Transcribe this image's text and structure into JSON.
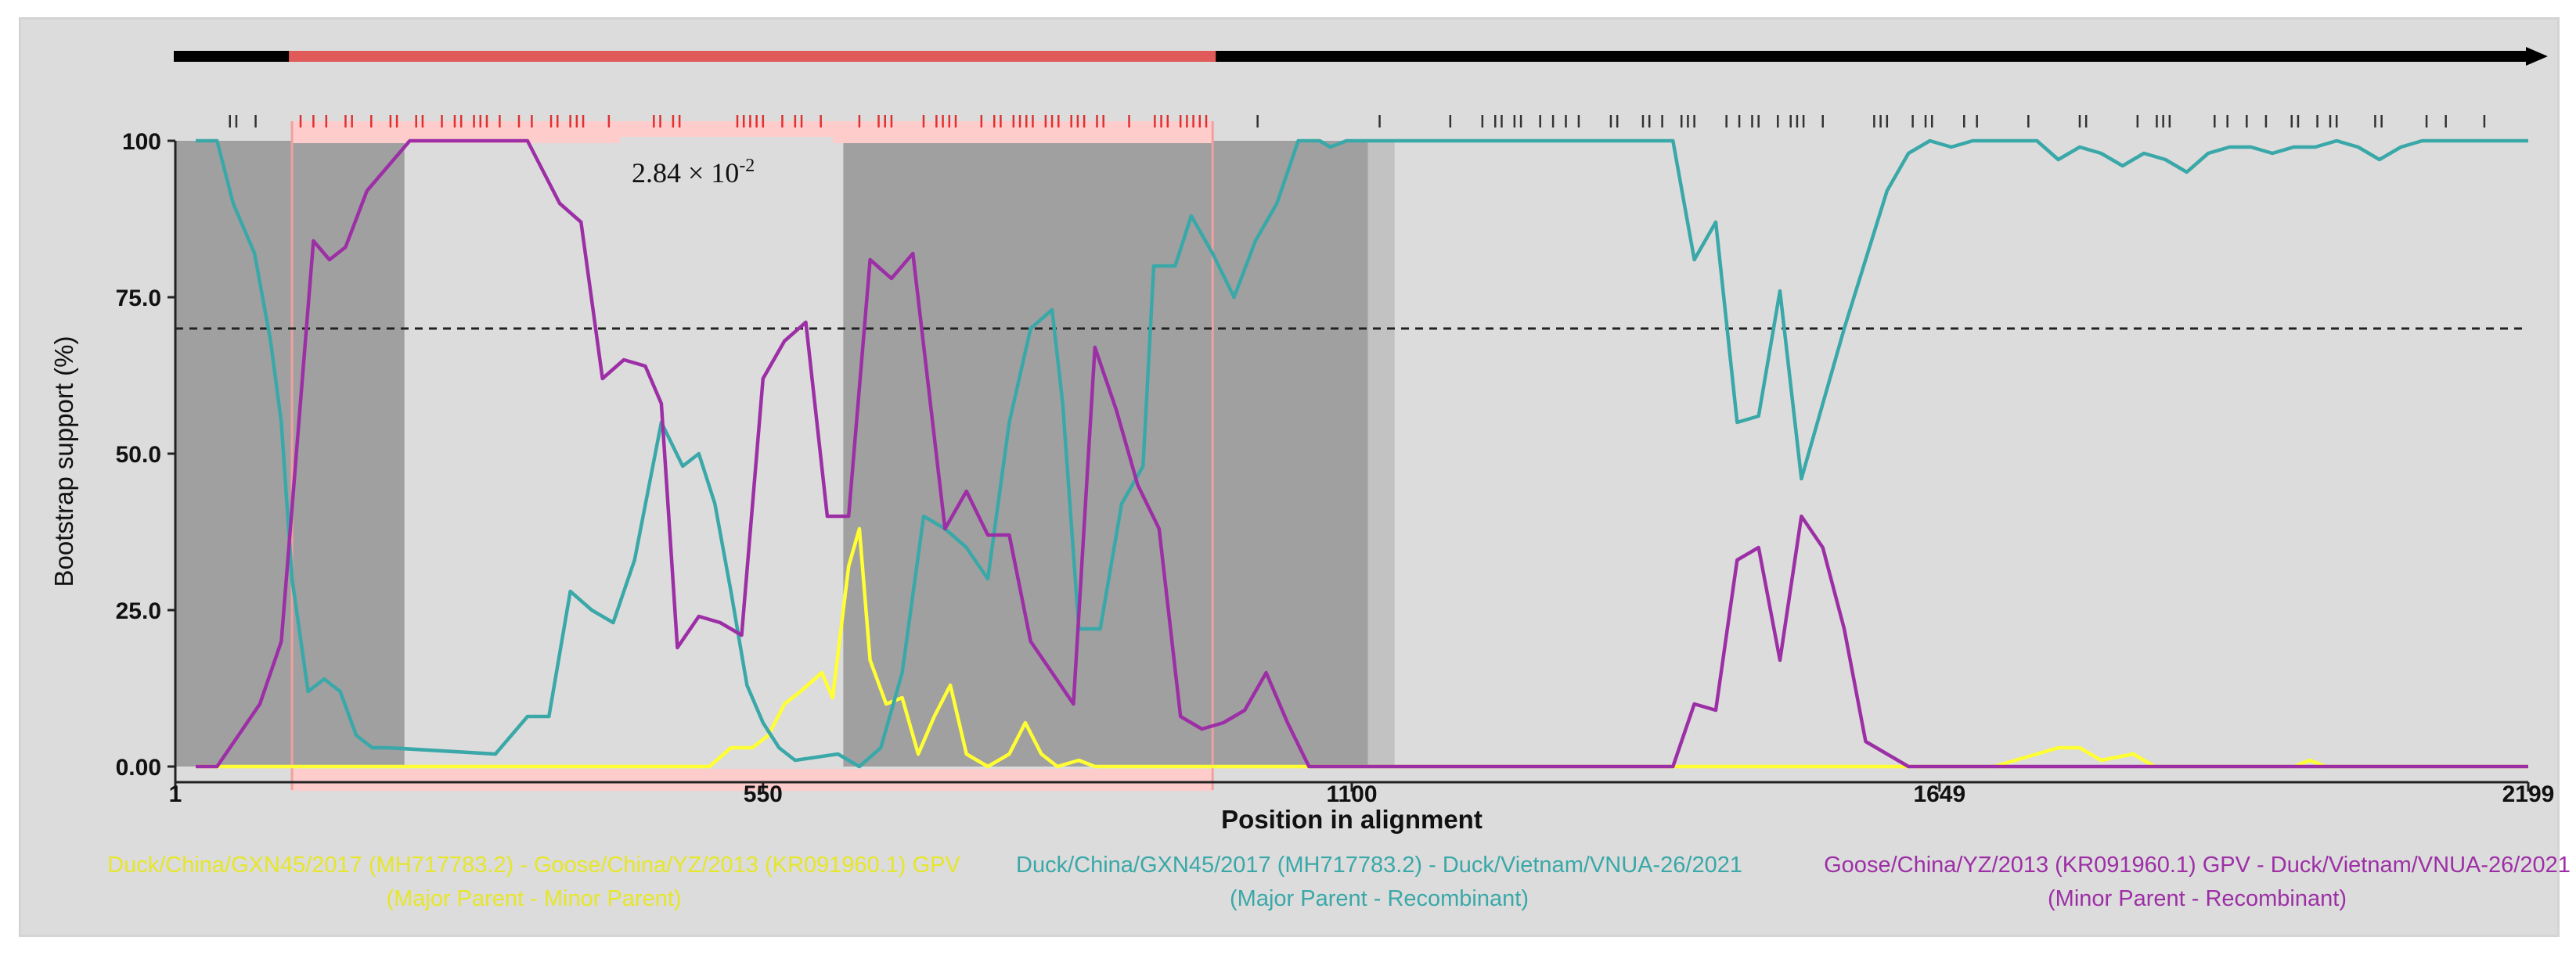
{
  "chart_data": {
    "type": "line",
    "xlabel": "Position in alignment",
    "ylabel": "Bootstrap support (%)",
    "xlim": [
      1,
      2199
    ],
    "ylim": [
      0,
      100
    ],
    "x_ticks": [
      "1",
      "550",
      "1100",
      "1649",
      "2199"
    ],
    "y_ticks": [
      "0.00",
      "25.0",
      "50.0",
      "75.0",
      "100"
    ],
    "threshold": 70,
    "pvalue_label": "2.84 × 10",
    "pvalue_exp": "-2",
    "recombinant_region": [
      110,
      970
    ],
    "shaded_regions": [
      {
        "from": 1,
        "to": 215,
        "tone": "dark"
      },
      {
        "from": 625,
        "to": 1115,
        "tone": "dark"
      },
      {
        "from": 1115,
        "to": 1140,
        "tone": "light"
      }
    ],
    "colors": {
      "yellow": "#ffff33",
      "teal": "#3aa8a8",
      "magenta": "#9d2fa6",
      "region_pink": "#ffcccc",
      "region_red": "#e05a5a"
    },
    "series": [
      {
        "name": "Duck/China/GXN45/2017 (MH717783.2) - Goose/China/YZ/2013 (KR091960.1) GPV",
        "sub": "(Major Parent - Minor Parent)",
        "color": "#ffff33",
        "points": [
          [
            20,
            0
          ],
          [
            500,
            0
          ],
          [
            520,
            3
          ],
          [
            540,
            3
          ],
          [
            555,
            5
          ],
          [
            570,
            10
          ],
          [
            585,
            12
          ],
          [
            605,
            15
          ],
          [
            615,
            11
          ],
          [
            630,
            32
          ],
          [
            640,
            38
          ],
          [
            650,
            17
          ],
          [
            665,
            10
          ],
          [
            680,
            11
          ],
          [
            695,
            2
          ],
          [
            710,
            8
          ],
          [
            725,
            13
          ],
          [
            740,
            2
          ],
          [
            760,
            0
          ],
          [
            780,
            2
          ],
          [
            795,
            7
          ],
          [
            810,
            2
          ],
          [
            825,
            0
          ],
          [
            845,
            1
          ],
          [
            860,
            0
          ],
          [
            1300,
            0
          ],
          [
            1600,
            0
          ],
          [
            1700,
            0
          ],
          [
            1720,
            1
          ],
          [
            1760,
            3
          ],
          [
            1780,
            3
          ],
          [
            1790,
            2
          ],
          [
            1800,
            1
          ],
          [
            1830,
            2
          ],
          [
            1850,
            0
          ],
          [
            1980,
            0
          ],
          [
            1995,
            1
          ],
          [
            2010,
            0
          ],
          [
            2199,
            0
          ]
        ]
      },
      {
        "name": "Duck/China/GXN45/2017 (MH717783.2) - Duck/Vietnam/VNUA-26/2021",
        "sub": "(Major Parent - Recombinant)",
        "color": "#3aa8a8",
        "points": [
          [
            20,
            100
          ],
          [
            40,
            100
          ],
          [
            55,
            90
          ],
          [
            75,
            82
          ],
          [
            90,
            68
          ],
          [
            100,
            55
          ],
          [
            110,
            30
          ],
          [
            125,
            12
          ],
          [
            140,
            14
          ],
          [
            155,
            12
          ],
          [
            170,
            5
          ],
          [
            185,
            3
          ],
          [
            200,
            3
          ],
          [
            300,
            2
          ],
          [
            330,
            8
          ],
          [
            350,
            8
          ],
          [
            370,
            28
          ],
          [
            390,
            25
          ],
          [
            410,
            23
          ],
          [
            430,
            33
          ],
          [
            455,
            55
          ],
          [
            475,
            48
          ],
          [
            490,
            50
          ],
          [
            505,
            42
          ],
          [
            520,
            28
          ],
          [
            535,
            13
          ],
          [
            550,
            7
          ],
          [
            565,
            3
          ],
          [
            580,
            1
          ],
          [
            620,
            2
          ],
          [
            640,
            0
          ],
          [
            660,
            3
          ],
          [
            680,
            15
          ],
          [
            700,
            40
          ],
          [
            720,
            38
          ],
          [
            740,
            35
          ],
          [
            760,
            30
          ],
          [
            780,
            55
          ],
          [
            800,
            70
          ],
          [
            820,
            73
          ],
          [
            830,
            58
          ],
          [
            845,
            22
          ],
          [
            865,
            22
          ],
          [
            885,
            42
          ],
          [
            905,
            48
          ],
          [
            915,
            80
          ],
          [
            935,
            80
          ],
          [
            950,
            88
          ],
          [
            970,
            82
          ],
          [
            990,
            75
          ],
          [
            1010,
            84
          ],
          [
            1030,
            90
          ],
          [
            1050,
            100
          ],
          [
            1070,
            100
          ],
          [
            1080,
            99
          ],
          [
            1095,
            100
          ],
          [
            1400,
            100
          ],
          [
            1420,
            81
          ],
          [
            1440,
            87
          ],
          [
            1460,
            55
          ],
          [
            1480,
            56
          ],
          [
            1500,
            76
          ],
          [
            1520,
            46
          ],
          [
            1560,
            70
          ],
          [
            1600,
            92
          ],
          [
            1620,
            98
          ],
          [
            1640,
            100
          ],
          [
            1660,
            99
          ],
          [
            1680,
            100
          ],
          [
            1740,
            100
          ],
          [
            1760,
            97
          ],
          [
            1780,
            99
          ],
          [
            1800,
            98
          ],
          [
            1820,
            96
          ],
          [
            1840,
            98
          ],
          [
            1860,
            97
          ],
          [
            1880,
            95
          ],
          [
            1900,
            98
          ],
          [
            1920,
            99
          ],
          [
            1940,
            99
          ],
          [
            1960,
            98
          ],
          [
            1980,
            99
          ],
          [
            2000,
            99
          ],
          [
            2020,
            100
          ],
          [
            2040,
            99
          ],
          [
            2060,
            97
          ],
          [
            2080,
            99
          ],
          [
            2100,
            100
          ],
          [
            2199,
            100
          ]
        ]
      },
      {
        "name": "Goose/China/YZ/2013 (KR091960.1) GPV - Duck/Vietnam/VNUA-26/2021",
        "sub": "(Minor Parent - Recombinant)",
        "color": "#9d2fa6",
        "points": [
          [
            20,
            0
          ],
          [
            40,
            0
          ],
          [
            60,
            5
          ],
          [
            80,
            10
          ],
          [
            100,
            20
          ],
          [
            115,
            52
          ],
          [
            130,
            84
          ],
          [
            145,
            81
          ],
          [
            160,
            83
          ],
          [
            180,
            92
          ],
          [
            220,
            100
          ],
          [
            330,
            100
          ],
          [
            360,
            90
          ],
          [
            380,
            87
          ],
          [
            400,
            62
          ],
          [
            420,
            65
          ],
          [
            440,
            64
          ],
          [
            455,
            58
          ],
          [
            470,
            19
          ],
          [
            490,
            24
          ],
          [
            510,
            23
          ],
          [
            530,
            21
          ],
          [
            550,
            62
          ],
          [
            570,
            68
          ],
          [
            590,
            71
          ],
          [
            610,
            40
          ],
          [
            630,
            40
          ],
          [
            650,
            81
          ],
          [
            670,
            78
          ],
          [
            690,
            82
          ],
          [
            720,
            38
          ],
          [
            740,
            44
          ],
          [
            760,
            37
          ],
          [
            780,
            37
          ],
          [
            800,
            20
          ],
          [
            820,
            15
          ],
          [
            840,
            10
          ],
          [
            860,
            67
          ],
          [
            880,
            57
          ],
          [
            900,
            45
          ],
          [
            920,
            38
          ],
          [
            940,
            8
          ],
          [
            960,
            6
          ],
          [
            980,
            7
          ],
          [
            1000,
            9
          ],
          [
            1020,
            15
          ],
          [
            1040,
            7
          ],
          [
            1060,
            0
          ],
          [
            1400,
            0
          ],
          [
            1420,
            10
          ],
          [
            1440,
            9
          ],
          [
            1460,
            33
          ],
          [
            1480,
            35
          ],
          [
            1500,
            17
          ],
          [
            1520,
            40
          ],
          [
            1540,
            35
          ],
          [
            1560,
            22
          ],
          [
            1580,
            4
          ],
          [
            1600,
            2
          ],
          [
            1620,
            0
          ],
          [
            2199,
            0
          ]
        ]
      }
    ]
  }
}
